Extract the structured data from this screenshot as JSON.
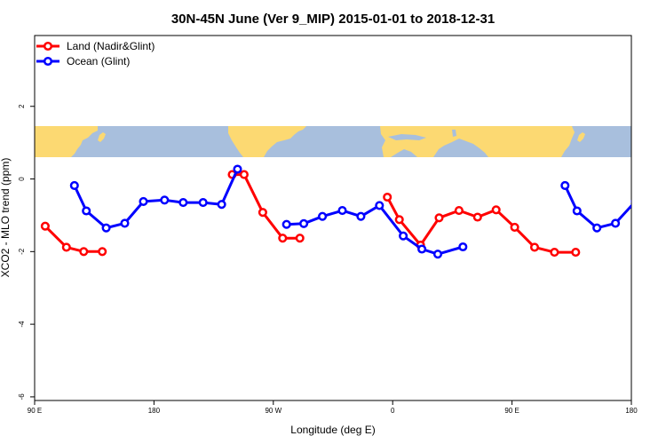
{
  "chart_data": {
    "type": "line",
    "title": "30N-45N June (Ver 9_MIP)   2015-01-01 to 2018-12-31",
    "xlabel": "Longitude (deg E)",
    "ylabel": "XCO2 - MLO trend (ppm)",
    "x_ticks": [
      {
        "value": 90,
        "label": "90 E"
      },
      {
        "value": 180,
        "label": "180"
      },
      {
        "value": 270,
        "label": "90 W"
      },
      {
        "value": 360,
        "label": "0"
      },
      {
        "value": 450,
        "label": "90 E"
      },
      {
        "value": 540,
        "label": "180"
      }
    ],
    "y_ticks": [
      {
        "value": -6,
        "label": "-6"
      },
      {
        "value": -4,
        "label": "-4"
      },
      {
        "value": -2,
        "label": "-2"
      },
      {
        "value": 0,
        "label": "0"
      },
      {
        "value": 2,
        "label": "2"
      }
    ],
    "xlim": [
      90,
      540
    ],
    "ylim": [
      -6.1,
      3.95
    ],
    "map_strip_yrange": [
      0.6,
      1.45
    ],
    "legend_position": "top-left",
    "grid": false,
    "series": [
      {
        "name": "Land (Nadir&Glint)",
        "color": "#ff0000",
        "segments": [
          [
            [
              98,
              -1.3
            ],
            [
              114,
              -1.88
            ],
            [
              127,
              -2.0
            ],
            [
              141,
              -2.0
            ]
          ],
          [
            [
              239,
              0.12
            ],
            [
              248,
              0.12
            ],
            [
              262,
              -0.92
            ],
            [
              277,
              -1.63
            ],
            [
              290,
              -1.63
            ]
          ],
          [
            [
              356,
              -0.5
            ],
            [
              365,
              -1.12
            ],
            [
              381,
              -1.82
            ],
            [
              395,
              -1.07
            ],
            [
              410,
              -0.87
            ],
            [
              424,
              -1.05
            ],
            [
              438,
              -0.85
            ],
            [
              452,
              -1.33
            ],
            [
              467,
              -1.88
            ],
            [
              482,
              -2.02
            ],
            [
              498,
              -2.02
            ]
          ]
        ]
      },
      {
        "name": "Ocean (Glint)",
        "color": "#0000ff",
        "segments": [
          [
            [
              120,
              -0.18
            ],
            [
              129,
              -0.88
            ],
            [
              144,
              -1.35
            ],
            [
              158,
              -1.22
            ],
            [
              172,
              -0.62
            ],
            [
              188,
              -0.58
            ],
            [
              202,
              -0.65
            ],
            [
              217,
              -0.65
            ],
            [
              231,
              -0.7
            ],
            [
              243,
              0.27
            ]
          ],
          [
            [
              280,
              -1.25
            ],
            [
              293,
              -1.23
            ],
            [
              307,
              -1.03
            ],
            [
              322,
              -0.87
            ],
            [
              336,
              -1.03
            ],
            [
              350,
              -0.73
            ],
            [
              368,
              -1.57
            ],
            [
              382,
              -1.93
            ],
            [
              394,
              -2.07
            ],
            [
              413,
              -1.87
            ]
          ],
          [
            [
              490,
              -0.18
            ],
            [
              499,
              -0.88
            ],
            [
              514,
              -1.35
            ],
            [
              528,
              -1.22
            ],
            [
              543,
              -0.62
            ]
          ]
        ]
      }
    ]
  },
  "colors": {
    "map_land": "#fcd972",
    "map_ocean": "#a8bfdd"
  }
}
